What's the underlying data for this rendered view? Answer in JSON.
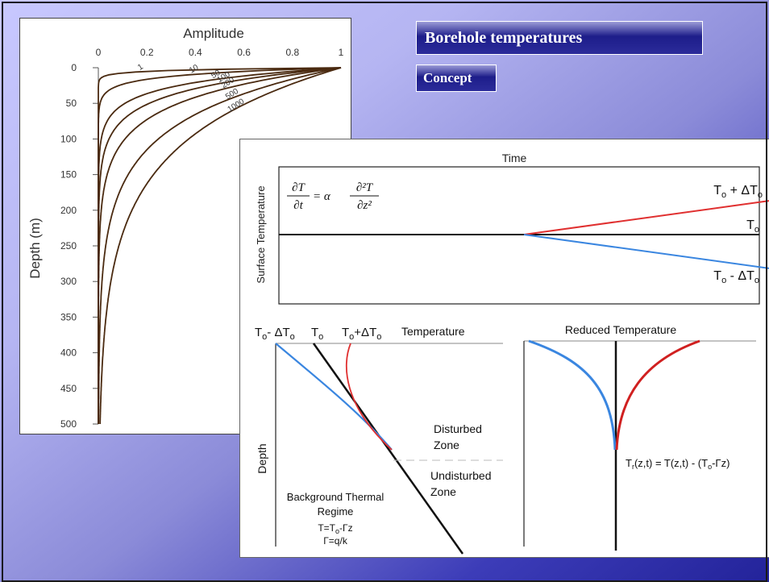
{
  "slide": {
    "title": "Borehole temperatures",
    "subtitle": "Concept"
  },
  "amplitude_plot": {
    "title": "Amplitude",
    "ylabel": "Depth (m)",
    "x_ticks": [
      "0",
      "0.2",
      "0.4",
      "0.6",
      "0.8",
      "1"
    ],
    "y_ticks": [
      "0",
      "50",
      "100",
      "150",
      "200",
      "250",
      "300",
      "350",
      "400",
      "450",
      "500"
    ],
    "xlim": [
      0,
      1
    ],
    "ylim": [
      0,
      500
    ],
    "curve_labels": [
      "1",
      "10",
      "50",
      "100",
      "200",
      "500",
      "1000"
    ],
    "curve_periods": [
      1,
      10,
      50,
      100,
      200,
      500,
      1000
    ],
    "line_color": "#4a2a10"
  },
  "surface_plot": {
    "time_label": "Time",
    "ylabel": "Surface Temperature",
    "equation": {
      "lhs_num": "∂T",
      "lhs_den": "∂t",
      "eq": "= α",
      "rhs_num": "∂²T",
      "rhs_den": "∂z²"
    },
    "upper_label": {
      "base": "T",
      "sub": "o",
      "rest": " + ΔT",
      "sub2": "o"
    },
    "mid_label": {
      "base": "T",
      "sub": "o"
    },
    "lower_label": {
      "base": "T",
      "sub": "o",
      "rest": " - ΔT",
      "sub2": "o"
    },
    "warming_color": "#e03030",
    "cooling_color": "#3a86e0"
  },
  "profile_plot": {
    "header_minus": {
      "base": "T",
      "sub": "o",
      "rest": "- ΔT",
      "sub2": "o"
    },
    "header_mid": {
      "base": "T",
      "sub": "o"
    },
    "header_plus": {
      "base": "T",
      "sub": "o",
      "rest": "+ΔT",
      "sub2": "o"
    },
    "temperature_label": "Temperature",
    "depth_label": "Depth",
    "disturbed_line1": "Disturbed",
    "disturbed_line2": "Zone",
    "undisturbed_line1": "Undisturbed",
    "undisturbed_line2": "Zone",
    "background_line1": "Background Thermal",
    "background_line2": "Regime",
    "formula1": {
      "pre": "T=T",
      "sub": "o",
      "post": "-Γz"
    },
    "formula2": "Γ=q/k"
  },
  "reduced_plot": {
    "title": "Reduced Temperature",
    "formula": {
      "pre": "T",
      "sub": "r",
      "mid": "(z,t) = T(z,t) - (T",
      "sub2": "o",
      "post": "-Γz)"
    }
  }
}
